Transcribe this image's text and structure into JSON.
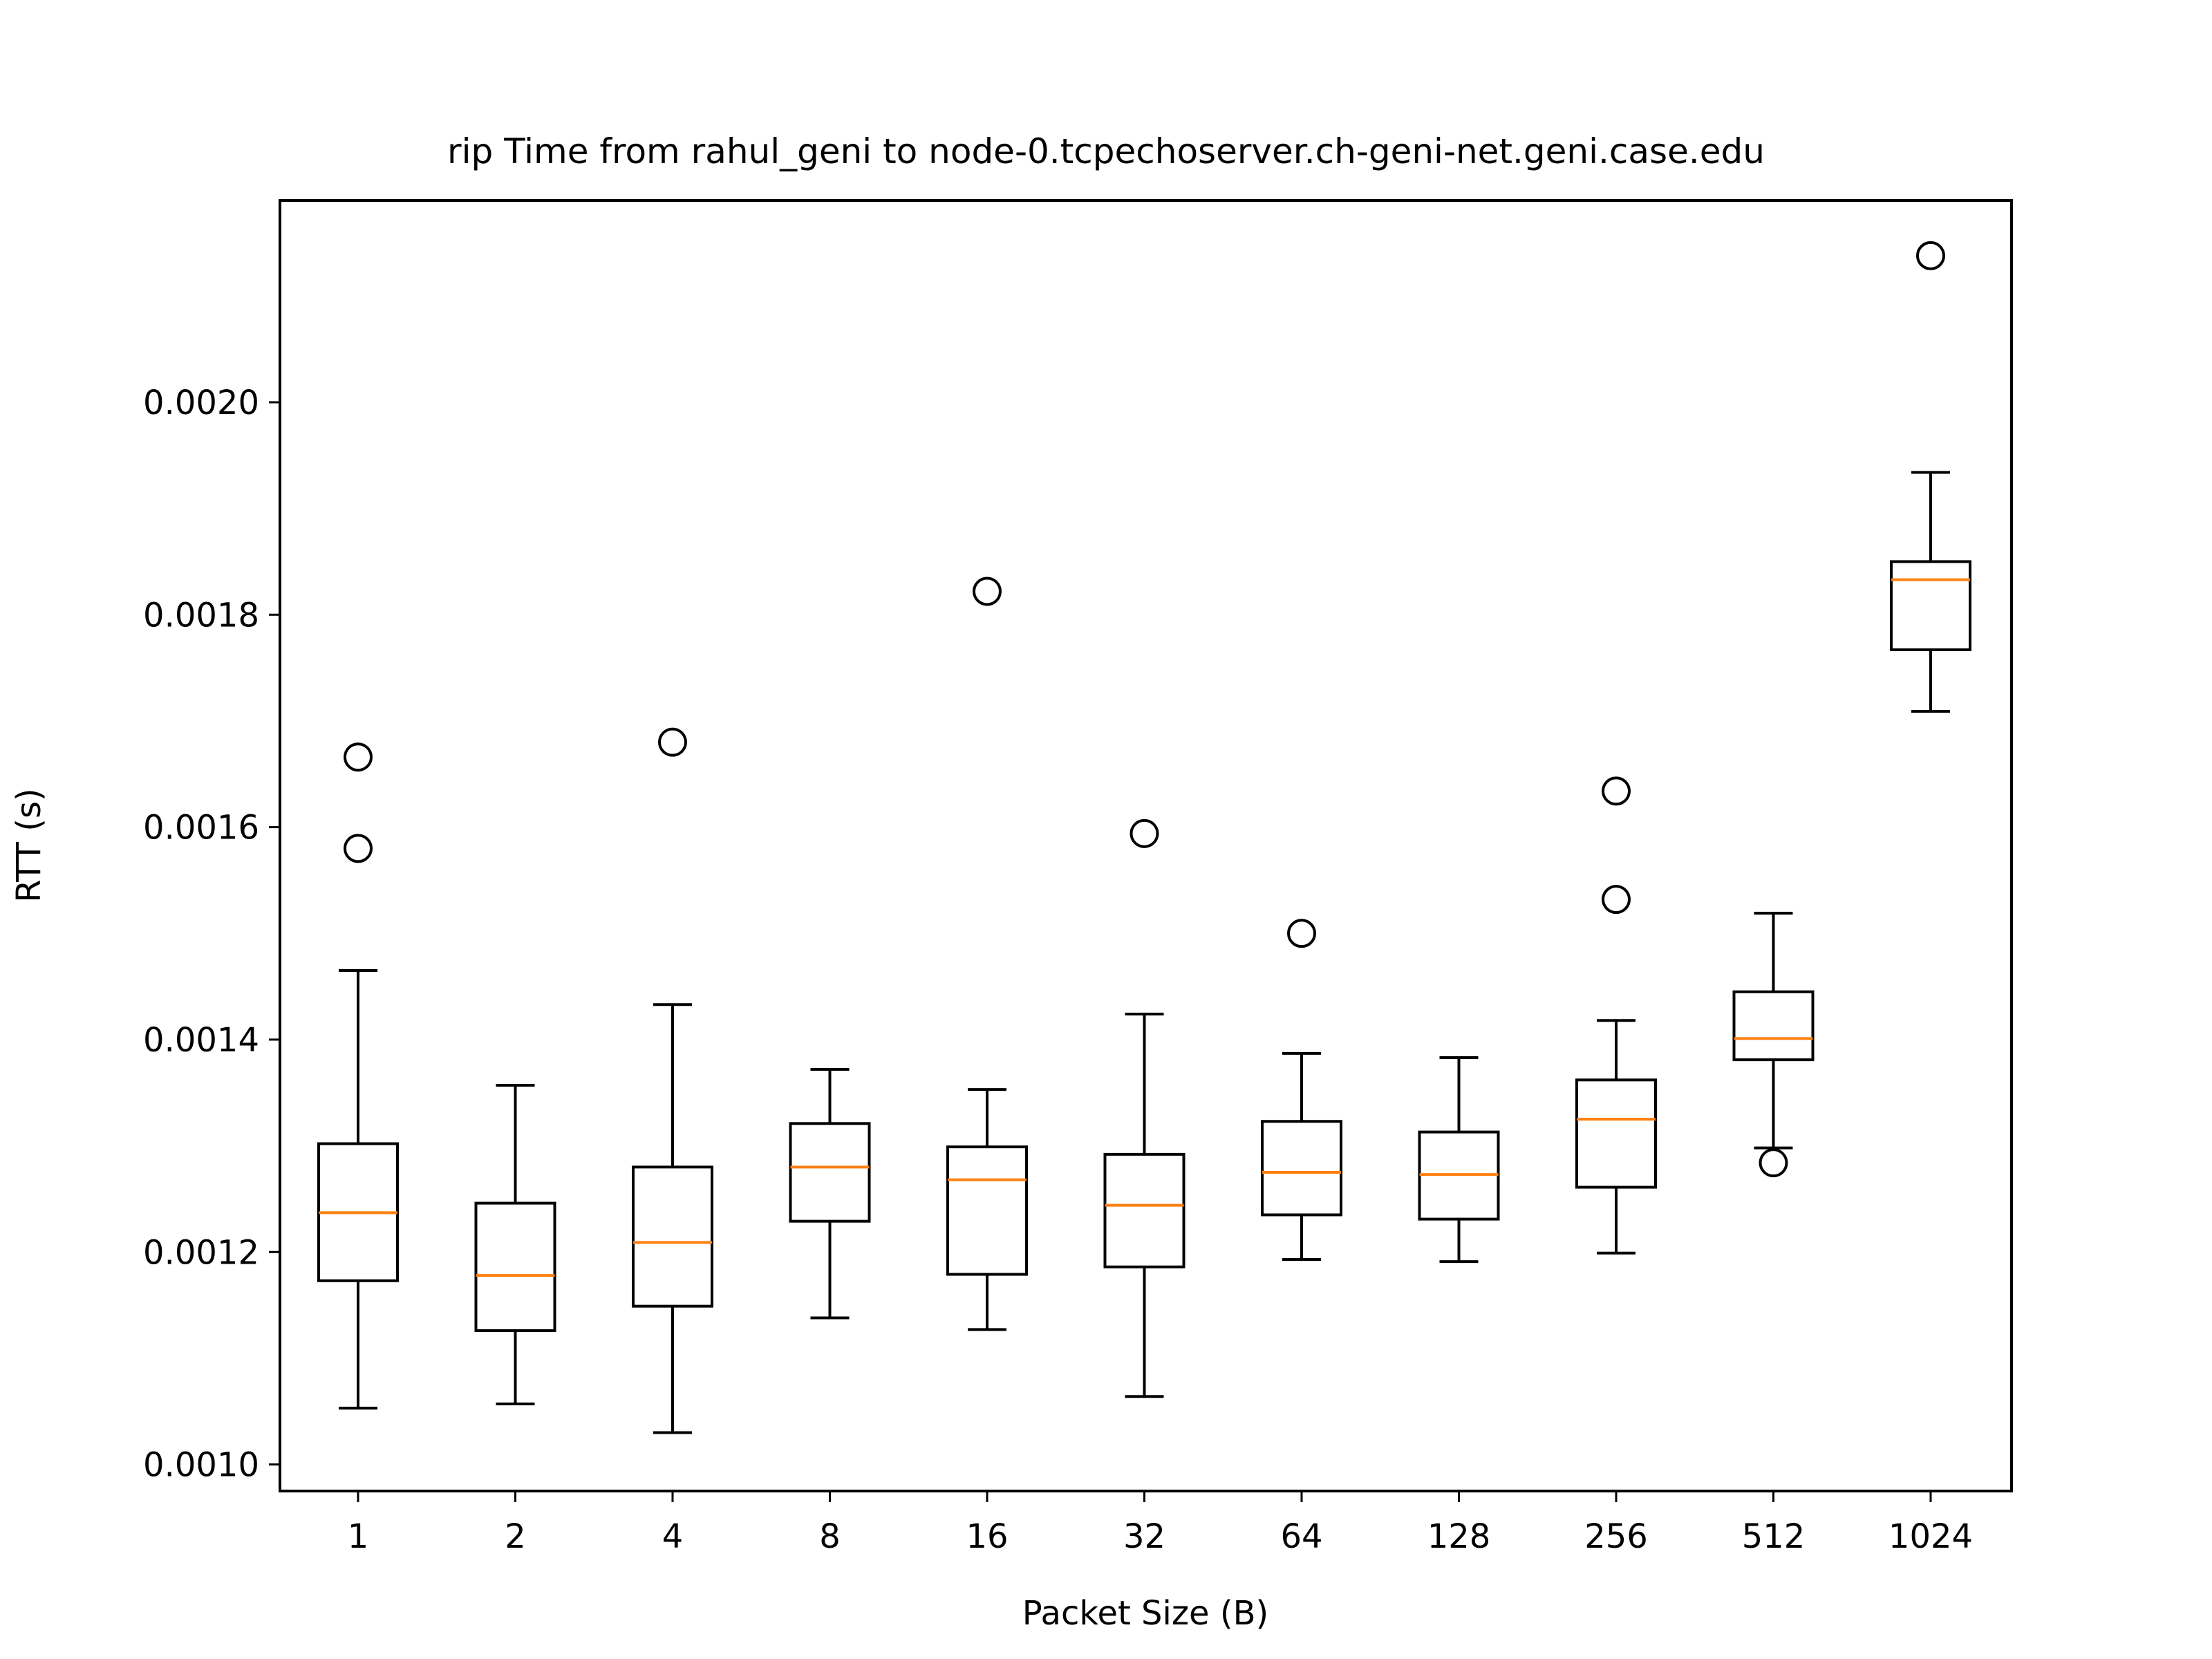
{
  "chart_data": {
    "type": "box",
    "title": "rip Time from rahul_geni to node-0.tcpechoserver.ch-geni-net.geni.case.edu",
    "xlabel": "Packet Size (B)",
    "ylabel": "RTT (s)",
    "ylim": [
      0.000975,
      0.00219
    ],
    "yticks": [
      "0.0010",
      "0.0012",
      "0.0014",
      "0.0016",
      "0.0018",
      "0.0020"
    ],
    "ytick_values": [
      0.001,
      0.0012,
      0.0014,
      0.0016,
      0.0018,
      0.002
    ],
    "categories": [
      "1",
      "2",
      "4",
      "8",
      "16",
      "32",
      "64",
      "128",
      "256",
      "512",
      "1024"
    ],
    "grid": false,
    "colors": {
      "box": "#000000",
      "median": "#ff7f0e",
      "flier": "#000000",
      "background": "#ffffff"
    },
    "boxes": [
      {
        "label": "1",
        "whislo": 0.001053,
        "q1": 0.001173,
        "med": 0.001237,
        "q3": 0.001302,
        "whishi": 0.001465,
        "fliers": [
          0.00158,
          0.001666
        ]
      },
      {
        "label": "2",
        "whislo": 0.001057,
        "q1": 0.001126,
        "med": 0.001178,
        "q3": 0.001246,
        "whishi": 0.001357,
        "fliers": []
      },
      {
        "label": "4",
        "whislo": 0.00103,
        "q1": 0.001149,
        "med": 0.001209,
        "q3": 0.00128,
        "whishi": 0.001433,
        "fliers": [
          0.00168
        ]
      },
      {
        "label": "8",
        "whislo": 0.001138,
        "q1": 0.001229,
        "med": 0.00128,
        "q3": 0.001321,
        "whishi": 0.001372,
        "fliers": []
      },
      {
        "label": "16",
        "whislo": 0.001127,
        "q1": 0.001179,
        "med": 0.001268,
        "q3": 0.001299,
        "whishi": 0.001353,
        "fliers": [
          0.001822
        ]
      },
      {
        "label": "32",
        "whislo": 0.001064,
        "q1": 0.001186,
        "med": 0.001244,
        "q3": 0.001292,
        "whishi": 0.001424,
        "fliers": [
          0.001594
        ]
      },
      {
        "label": "64",
        "whislo": 0.001193,
        "q1": 0.001235,
        "med": 0.001275,
        "q3": 0.001323,
        "whishi": 0.001387,
        "fliers": [
          0.0015
        ]
      },
      {
        "label": "128",
        "whislo": 0.001191,
        "q1": 0.001231,
        "med": 0.001273,
        "q3": 0.001313,
        "whishi": 0.001383,
        "fliers": []
      },
      {
        "label": "256",
        "whislo": 0.001199,
        "q1": 0.001261,
        "med": 0.001325,
        "q3": 0.001362,
        "whishi": 0.001418,
        "fliers": [
          0.001532,
          0.001634
        ]
      },
      {
        "label": "512",
        "whislo": 0.001298,
        "q1": 0.001381,
        "med": 0.001401,
        "q3": 0.001445,
        "whishi": 0.001519,
        "fliers": [
          0.001284
        ]
      },
      {
        "label": "1024",
        "whislo": 0.001709,
        "q1": 0.001767,
        "med": 0.001833,
        "q3": 0.00185,
        "whishi": 0.001934,
        "fliers": [
          0.002138
        ]
      }
    ]
  }
}
